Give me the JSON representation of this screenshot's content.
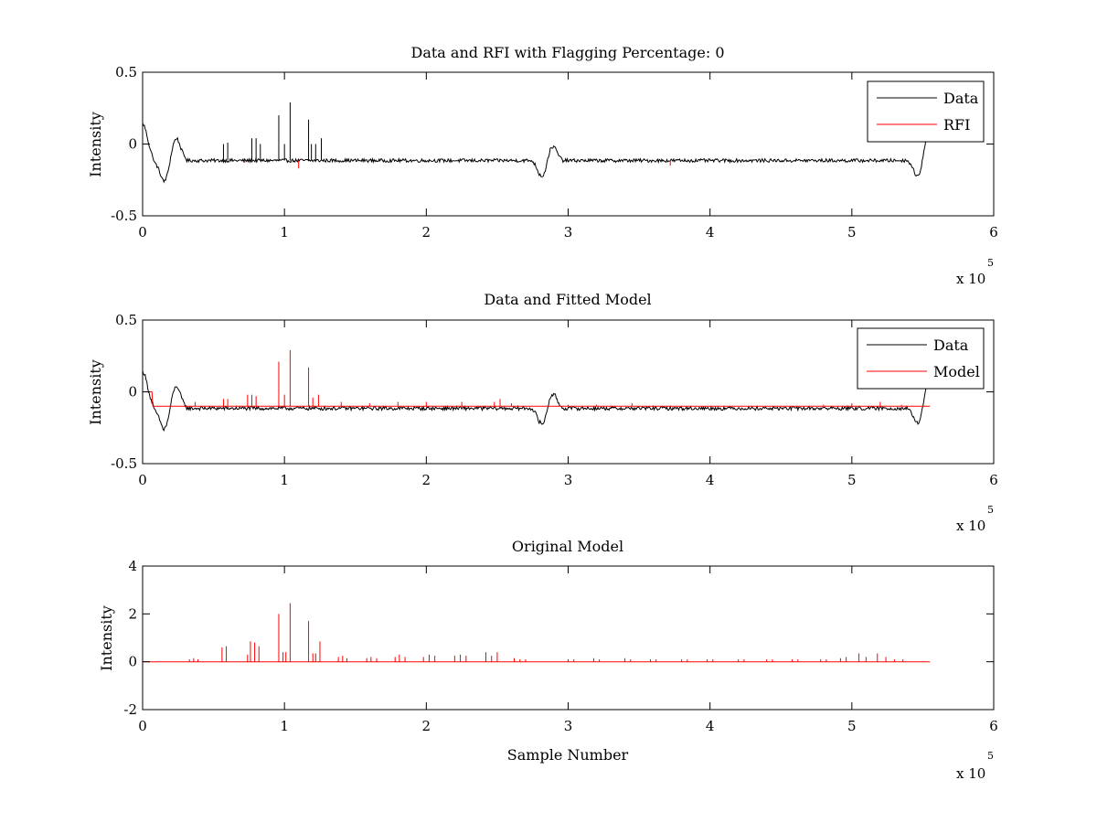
{
  "chart_data": [
    {
      "type": "line",
      "title": "Data and RFI with Flagging Percentage: 0",
      "xlabel": "",
      "ylabel": "Intensity",
      "xlim": [
        0,
        600000
      ],
      "ylim": [
        -0.5,
        0.5
      ],
      "x_ticks": [
        0,
        100000,
        200000,
        300000,
        400000,
        500000,
        600000
      ],
      "x_tick_labels": [
        "0",
        "1",
        "2",
        "3",
        "4",
        "5",
        "6"
      ],
      "y_ticks": [
        -0.5,
        0,
        0.5
      ],
      "y_tick_labels": [
        "-0.5",
        "0",
        "0.5"
      ],
      "x_multiplier": "x 10",
      "x_multiplier_exp": "5",
      "legend": {
        "position": "top-right",
        "entries": [
          {
            "label": "Data",
            "color": "#000000"
          },
          {
            "label": "RFI",
            "color": "#ff0000"
          }
        ]
      },
      "series": [
        {
          "name": "Data",
          "color": "#000000",
          "baseline": -0.115,
          "noise": 0.012,
          "x_end": 555000,
          "dips": [
            [
              0,
              0.14
            ],
            [
              16000,
              -0.27
            ],
            [
              23000,
              0.05
            ],
            [
              283000,
              -0.27
            ],
            [
              287500,
              0.03
            ],
            [
              548000,
              -0.27
            ],
            [
              553000,
              0.1
            ]
          ],
          "spikes": [
            [
              57000,
              0.0
            ],
            [
              60000,
              0.01
            ],
            [
              77000,
              0.04
            ],
            [
              80000,
              0.04
            ],
            [
              83000,
              0.0
            ],
            [
              96000,
              0.2
            ],
            [
              100000,
              0.0
            ],
            [
              104000,
              0.29
            ],
            [
              117000,
              0.17
            ],
            [
              119000,
              0.0
            ],
            [
              122000,
              0.0
            ],
            [
              126000,
              0.04
            ]
          ]
        },
        {
          "name": "RFI",
          "color": "#ff0000",
          "spikes": [
            [
              72000,
              -0.13
            ],
            [
              110000,
              -0.17
            ],
            [
              372000,
              -0.15
            ]
          ]
        }
      ]
    },
    {
      "type": "line",
      "title": "Data and Fitted Model",
      "xlabel": "",
      "ylabel": "Intensity",
      "xlim": [
        0,
        600000
      ],
      "ylim": [
        -0.5,
        0.5
      ],
      "x_ticks": [
        0,
        100000,
        200000,
        300000,
        400000,
        500000,
        600000
      ],
      "x_tick_labels": [
        "0",
        "1",
        "2",
        "3",
        "4",
        "5",
        "6"
      ],
      "y_ticks": [
        -0.5,
        0,
        0.5
      ],
      "y_tick_labels": [
        "-0.5",
        "0",
        "0.5"
      ],
      "x_multiplier": "x 10",
      "x_multiplier_exp": "5",
      "legend": {
        "position": "top-right",
        "entries": [
          {
            "label": "Data",
            "color": "#000000"
          },
          {
            "label": "Model",
            "color": "#ff0000"
          }
        ]
      },
      "series": [
        {
          "name": "Data",
          "color": "#000000",
          "baseline": -0.115,
          "noise": 0.013,
          "x_end": 555000,
          "dips": [
            [
              0,
              0.14
            ],
            [
              16000,
              -0.27
            ],
            [
              23000,
              0.05
            ],
            [
              283000,
              -0.27
            ],
            [
              287500,
              0.03
            ],
            [
              548000,
              -0.27
            ],
            [
              553000,
              0.1
            ]
          ],
          "spikes": []
        },
        {
          "name": "Model",
          "color": "#ff0000",
          "baseline": -0.1,
          "x_end": 555000,
          "start_level": 0.0,
          "spikes": [
            [
              37000,
              -0.07
            ],
            [
              57000,
              -0.05
            ],
            [
              60000,
              -0.05
            ],
            [
              74000,
              -0.02
            ],
            [
              77000,
              -0.02
            ],
            [
              80000,
              -0.03
            ],
            [
              96000,
              0.21
            ],
            [
              100000,
              -0.02
            ],
            [
              104000,
              0.29
            ],
            [
              117000,
              0.17
            ],
            [
              120000,
              -0.04
            ],
            [
              124000,
              -0.02
            ],
            [
              140000,
              -0.07
            ],
            [
              160000,
              -0.08
            ],
            [
              180000,
              -0.07
            ],
            [
              200000,
              -0.07
            ],
            [
              225000,
              -0.07
            ],
            [
              248000,
              -0.07
            ],
            [
              252000,
              -0.05
            ],
            [
              260000,
              -0.08
            ],
            [
              300000,
              -0.09
            ],
            [
              320000,
              -0.09
            ],
            [
              345000,
              -0.08
            ],
            [
              370000,
              -0.1
            ],
            [
              400000,
              -0.1
            ],
            [
              450000,
              -0.1
            ],
            [
              480000,
              -0.09
            ],
            [
              500000,
              -0.08
            ],
            [
              520000,
              -0.07
            ],
            [
              535000,
              -0.09
            ]
          ]
        }
      ]
    },
    {
      "type": "line",
      "title": "Original Model",
      "xlabel": "Sample Number",
      "ylabel": "Intensity",
      "xlim": [
        0,
        600000
      ],
      "ylim": [
        -2,
        4
      ],
      "x_ticks": [
        0,
        100000,
        200000,
        300000,
        400000,
        500000,
        600000
      ],
      "x_tick_labels": [
        "0",
        "1",
        "2",
        "3",
        "4",
        "5",
        "6"
      ],
      "y_ticks": [
        -2,
        0,
        2,
        4
      ],
      "y_tick_labels": [
        "-2",
        "0",
        "2",
        "4"
      ],
      "x_multiplier": "x 10",
      "x_multiplier_exp": "5",
      "series": [
        {
          "name": "",
          "color": "#ff0000",
          "baseline": 0,
          "x_end": 555000,
          "spikes": [
            [
              33000,
              0.1
            ],
            [
              36000,
              0.15
            ],
            [
              39000,
              0.1
            ],
            [
              56000,
              0.6
            ],
            [
              59000,
              0.65
            ],
            [
              74000,
              0.3
            ],
            [
              76000,
              0.85
            ],
            [
              79000,
              0.8
            ],
            [
              82000,
              0.65
            ],
            [
              96000,
              2.0
            ],
            [
              99000,
              0.4
            ],
            [
              101000,
              0.4
            ],
            [
              104000,
              2.45
            ],
            [
              117000,
              1.7
            ],
            [
              120000,
              0.35
            ],
            [
              122000,
              0.35
            ],
            [
              125000,
              0.85
            ],
            [
              138000,
              0.2
            ],
            [
              141000,
              0.25
            ],
            [
              144000,
              0.15
            ],
            [
              158000,
              0.15
            ],
            [
              161000,
              0.2
            ],
            [
              165000,
              0.15
            ],
            [
              178000,
              0.2
            ],
            [
              181000,
              0.3
            ],
            [
              185000,
              0.2
            ],
            [
              198000,
              0.2
            ],
            [
              202000,
              0.3
            ],
            [
              206000,
              0.25
            ],
            [
              220000,
              0.25
            ],
            [
              224000,
              0.3
            ],
            [
              228000,
              0.25
            ],
            [
              242000,
              0.4
            ],
            [
              246000,
              0.25
            ],
            [
              250000,
              0.4
            ],
            [
              262000,
              0.15
            ],
            [
              266000,
              0.1
            ],
            [
              270000,
              0.1
            ],
            [
              300000,
              0.1
            ],
            [
              304000,
              0.1
            ],
            [
              318000,
              0.15
            ],
            [
              322000,
              0.1
            ],
            [
              340000,
              0.15
            ],
            [
              344000,
              0.1
            ],
            [
              358000,
              0.1
            ],
            [
              362000,
              0.1
            ],
            [
              380000,
              0.1
            ],
            [
              384000,
              0.1
            ],
            [
              398000,
              0.1
            ],
            [
              402000,
              0.1
            ],
            [
              420000,
              0.1
            ],
            [
              424000,
              0.1
            ],
            [
              440000,
              0.1
            ],
            [
              444000,
              0.1
            ],
            [
              458000,
              0.1
            ],
            [
              462000,
              0.1
            ],
            [
              478000,
              0.1
            ],
            [
              482000,
              0.1
            ],
            [
              492000,
              0.15
            ],
            [
              496000,
              0.2
            ],
            [
              505000,
              0.35
            ],
            [
              510000,
              0.2
            ],
            [
              518000,
              0.35
            ],
            [
              524000,
              0.2
            ],
            [
              530000,
              0.1
            ],
            [
              536000,
              0.1
            ]
          ]
        }
      ]
    }
  ]
}
